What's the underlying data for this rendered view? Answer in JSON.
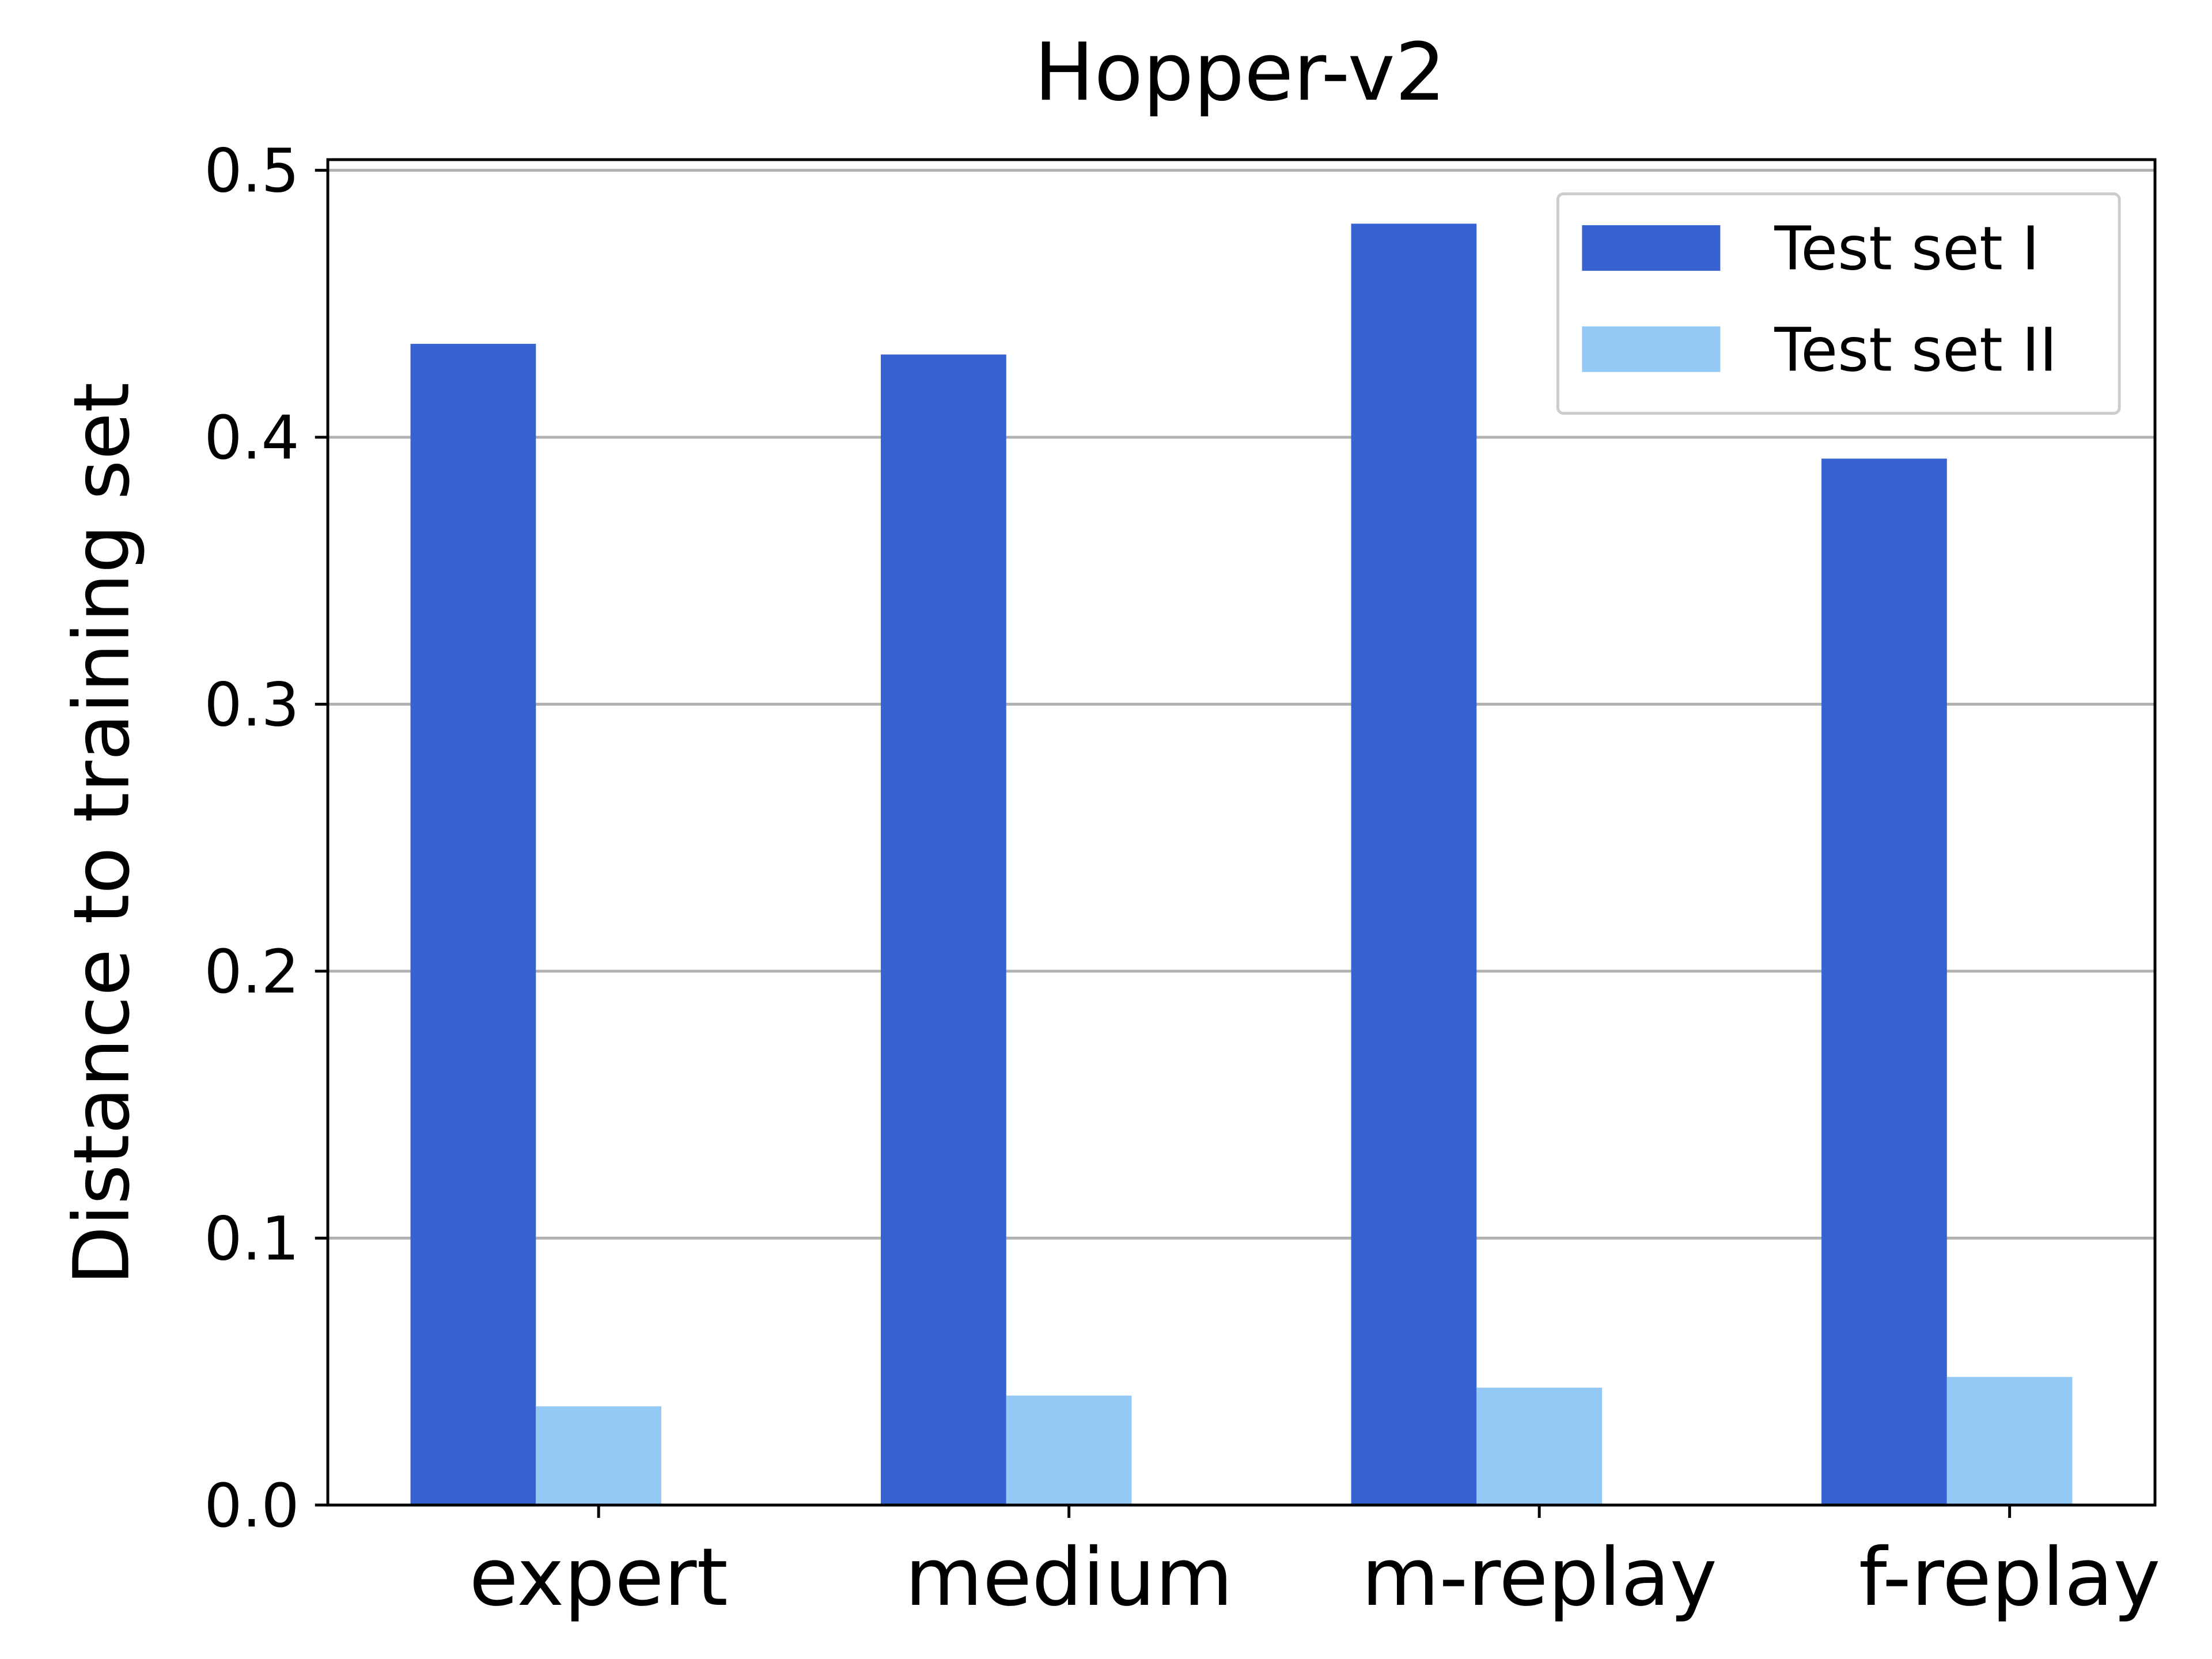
{
  "chart_data": {
    "type": "bar",
    "title": "Hopper-v2",
    "y_label": "Distance to training set",
    "categories": [
      "expert",
      "medium",
      "m-replay",
      "f-replay"
    ],
    "series": [
      {
        "name": "Test set I",
        "color": "#3762d1",
        "values": [
          0.435,
          0.431,
          0.48,
          0.392
        ]
      },
      {
        "name": "Test set II",
        "color": "#94c9f5",
        "values": [
          0.037,
          0.041,
          0.044,
          0.048
        ]
      }
    ],
    "ylim": [
      0,
      0.504
    ],
    "yticks": [
      {
        "value": 0,
        "label": "0.0"
      },
      0.1,
      0.2,
      0.3,
      0.4,
      0.5
    ],
    "grid": true,
    "legend": "upper right"
  }
}
